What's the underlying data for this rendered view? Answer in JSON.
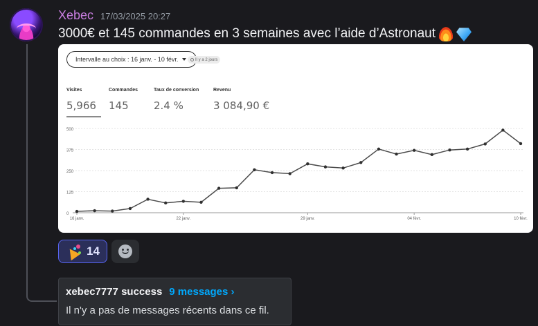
{
  "author": {
    "username": "Xebec",
    "timestamp": "17/03/2025 20:27"
  },
  "message": {
    "text": "3000€ et 145 commandes en 3 semaines avec l’aide d’Astronaut",
    "emojis": [
      "fire-icon",
      "gem-icon"
    ]
  },
  "attachment": {
    "range_select": "Intervalle au choix : 16 janv. - 10 févr.",
    "ago_badge": "Il y a 2 jours",
    "metrics": [
      {
        "label": "Visites",
        "value": "5,966"
      },
      {
        "label": "Commandes",
        "value": "145"
      },
      {
        "label": "Taux de conversion",
        "value": "2.4 %"
      },
      {
        "label": "Revenu",
        "value": "3 084,90 €"
      }
    ],
    "chart_data": {
      "type": "line",
      "ylim": [
        0,
        500
      ],
      "yticks": [
        "0",
        "125",
        "250",
        "375",
        "500"
      ],
      "xtick_labels": [
        "16 janv.",
        "22 janv.",
        "29 janv.",
        "04 févr.",
        "10 févr."
      ],
      "xtick_index": [
        0,
        6,
        13,
        19,
        25
      ],
      "series": [
        {
          "values": [
            8,
            12,
            10,
            25,
            80,
            58,
            68,
            62,
            145,
            148,
            255,
            238,
            232,
            290,
            272,
            265,
            298,
            378,
            348,
            370,
            345,
            372,
            378,
            408,
            490,
            410
          ]
        }
      ],
      "color": "#4a4a4a"
    }
  },
  "reactions": [
    {
      "icon": "party-popper-icon",
      "count": "14"
    }
  ],
  "thread": {
    "name": "xebec7777 success",
    "count": "9 messages ›",
    "preview": "Il n'y a pas de messages récents dans ce fil."
  }
}
